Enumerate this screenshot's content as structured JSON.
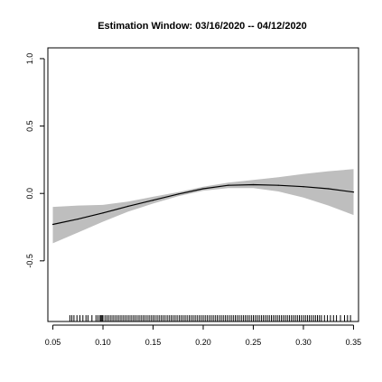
{
  "chart_data": {
    "type": "line",
    "title": "Estimation Window: 03/16/2020 -- 04/12/2020",
    "xlabel": "",
    "ylabel": "",
    "xlim": [
      0.045,
      0.355
    ],
    "ylim": [
      -0.95,
      1.08
    ],
    "grid": false,
    "legend": "none",
    "x_ticks": [
      0.05,
      0.1,
      0.15,
      0.2,
      0.25,
      0.3,
      0.35
    ],
    "x_tick_labels": [
      "0.05",
      "0.10",
      "0.15",
      "0.20",
      "0.25",
      "0.30",
      "0.35"
    ],
    "y_ticks": [
      -0.5,
      0.0,
      0.5,
      1.0
    ],
    "y_tick_labels": [
      "-0.5",
      "0.0",
      "0.5",
      "1.0"
    ],
    "series": [
      {
        "x": [
          0.05,
          0.075,
          0.1,
          0.125,
          0.15,
          0.175,
          0.2,
          0.225,
          0.25,
          0.275,
          0.3,
          0.325,
          0.35
        ],
        "y": [
          -0.23,
          -0.19,
          -0.145,
          -0.095,
          -0.05,
          -0.005,
          0.035,
          0.06,
          0.065,
          0.06,
          0.05,
          0.035,
          0.01
        ],
        "lower": [
          -0.37,
          -0.29,
          -0.21,
          -0.135,
          -0.075,
          -0.02,
          0.02,
          0.04,
          0.04,
          0.015,
          -0.03,
          -0.09,
          -0.16
        ],
        "upper": [
          -0.1,
          -0.09,
          -0.085,
          -0.06,
          -0.025,
          0.01,
          0.05,
          0.08,
          0.1,
          0.12,
          0.145,
          0.165,
          0.18
        ]
      }
    ],
    "rug": {
      "x": [
        0.067,
        0.069,
        0.071,
        0.074,
        0.077,
        0.08,
        0.083,
        0.085,
        0.089,
        0.093,
        0.095,
        0.097,
        0.098,
        0.099,
        0.1,
        0.102,
        0.104,
        0.106,
        0.108,
        0.11,
        0.112,
        0.114,
        0.116,
        0.118,
        0.12,
        0.122,
        0.124,
        0.126,
        0.128,
        0.13,
        0.132,
        0.134,
        0.136,
        0.138,
        0.14,
        0.142,
        0.144,
        0.146,
        0.148,
        0.15,
        0.152,
        0.154,
        0.156,
        0.158,
        0.16,
        0.162,
        0.164,
        0.166,
        0.168,
        0.17,
        0.172,
        0.174,
        0.176,
        0.178,
        0.18,
        0.182,
        0.184,
        0.186,
        0.188,
        0.19,
        0.192,
        0.194,
        0.196,
        0.198,
        0.2,
        0.202,
        0.204,
        0.206,
        0.208,
        0.21,
        0.212,
        0.214,
        0.216,
        0.218,
        0.22,
        0.222,
        0.224,
        0.226,
        0.228,
        0.23,
        0.232,
        0.234,
        0.236,
        0.238,
        0.24,
        0.242,
        0.244,
        0.246,
        0.248,
        0.25,
        0.252,
        0.254,
        0.256,
        0.258,
        0.26,
        0.262,
        0.264,
        0.266,
        0.268,
        0.27,
        0.272,
        0.274,
        0.276,
        0.278,
        0.28,
        0.282,
        0.284,
        0.286,
        0.288,
        0.29,
        0.292,
        0.294,
        0.296,
        0.298,
        0.3,
        0.302,
        0.304,
        0.306,
        0.308,
        0.31,
        0.312,
        0.314,
        0.316,
        0.318,
        0.321,
        0.324,
        0.327,
        0.33,
        0.333,
        0.337,
        0.341,
        0.344,
        0.347
      ]
    },
    "colors": {
      "band": "#bebebe",
      "line": "#000000",
      "axis": "#000000"
    }
  }
}
